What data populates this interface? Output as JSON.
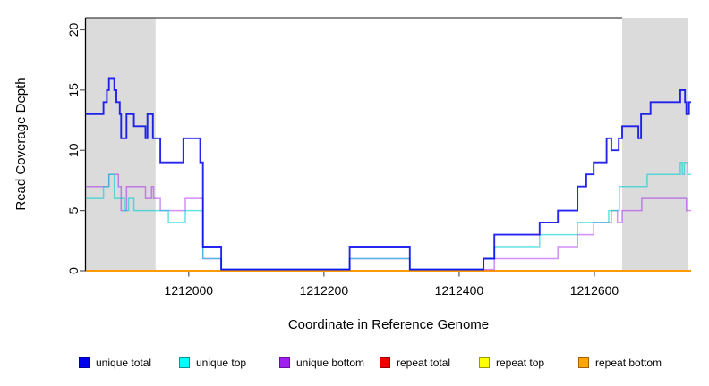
{
  "chart_data": {
    "type": "line",
    "subtype": "step-after",
    "title": "",
    "xlabel": "Coordinate in Reference Genome",
    "ylabel": "Read Coverage Depth",
    "xlim": [
      1211848,
      1212743
    ],
    "ylim": [
      0,
      21
    ],
    "x_ticks": [
      1212000,
      1212200,
      1212400,
      1212600
    ],
    "y_ticks": [
      0,
      5,
      10,
      15,
      20
    ],
    "grid": false,
    "legend_position": "bottom",
    "background": "#ffffff",
    "shaded_region_color": "#DBDBDB",
    "shaded_regions": [
      {
        "x1": 1211848,
        "x2": 1211951
      },
      {
        "x1": 1212641,
        "x2": 1212738
      }
    ],
    "series": [
      {
        "name": "repeat total",
        "color": "#DD0000",
        "alpha": 1,
        "width": 1.5,
        "legend_fill": "#EE0000",
        "legend_border": "#990000",
        "points": [
          [
            1211848,
            0
          ]
        ]
      },
      {
        "name": "repeat top",
        "color": "#FFFF00",
        "alpha": 1,
        "width": 1.5,
        "legend_fill": "#FFFF00",
        "legend_border": "#9A9A00",
        "points": [
          [
            1211848,
            0
          ]
        ]
      },
      {
        "name": "repeat bottom",
        "color": "#FF9800",
        "alpha": 1,
        "width": 1.8,
        "legend_fill": "#FFA500",
        "legend_border": "#A65E00",
        "points": [
          [
            1211848,
            0
          ]
        ]
      },
      {
        "name": "unique bottom",
        "color": "#A020F0",
        "alpha": 0.5,
        "width": 1.5,
        "legend_fill": "#A020F0",
        "legend_border": "#6812A0",
        "points": [
          [
            1211848,
            7
          ],
          [
            1211882,
            8
          ],
          [
            1211896,
            7
          ],
          [
            1211900,
            5
          ],
          [
            1211908,
            7
          ],
          [
            1211936,
            6
          ],
          [
            1211945,
            7
          ],
          [
            1211948,
            6
          ],
          [
            1211958,
            5
          ],
          [
            1211995,
            6
          ],
          [
            1212021,
            1
          ],
          [
            1212048,
            0
          ],
          [
            1212238,
            1
          ],
          [
            1212327,
            0
          ],
          [
            1212452,
            1
          ],
          [
            1212546,
            2
          ],
          [
            1212575,
            3
          ],
          [
            1212599,
            4
          ],
          [
            1212625,
            5
          ],
          [
            1212634,
            4
          ],
          [
            1212641,
            5
          ],
          [
            1212670,
            6
          ],
          [
            1212736,
            5
          ]
        ]
      },
      {
        "name": "unique top",
        "color": "#00CED1",
        "alpha": 0.6,
        "width": 1.5,
        "legend_fill": "#00FFFF",
        "legend_border": "#009699",
        "points": [
          [
            1211848,
            6
          ],
          [
            1211874,
            7
          ],
          [
            1211882,
            8
          ],
          [
            1211890,
            6
          ],
          [
            1211905,
            5
          ],
          [
            1211911,
            6
          ],
          [
            1211919,
            5
          ],
          [
            1211970,
            4
          ],
          [
            1211995,
            5
          ],
          [
            1212021,
            1
          ],
          [
            1212048,
            0
          ],
          [
            1212238,
            1
          ],
          [
            1212327,
            0
          ],
          [
            1212436,
            1
          ],
          [
            1212452,
            2
          ],
          [
            1212519,
            3
          ],
          [
            1212575,
            4
          ],
          [
            1212621,
            5
          ],
          [
            1212637,
            7
          ],
          [
            1212678,
            8
          ],
          [
            1212727,
            9
          ],
          [
            1212730,
            8
          ],
          [
            1212733,
            9
          ],
          [
            1212738,
            8
          ]
        ]
      },
      {
        "name": "unique total",
        "color": "#0000EE",
        "alpha": 0.85,
        "width": 1.9,
        "legend_fill": "#0000EE",
        "legend_border": "#000099",
        "points": [
          [
            1211848,
            13
          ],
          [
            1211874,
            14
          ],
          [
            1211879,
            15
          ],
          [
            1211882,
            16
          ],
          [
            1211890,
            15
          ],
          [
            1211893,
            14
          ],
          [
            1211898,
            13
          ],
          [
            1211900,
            11
          ],
          [
            1211908,
            13
          ],
          [
            1211919,
            12
          ],
          [
            1211936,
            11
          ],
          [
            1211939,
            13
          ],
          [
            1211947,
            11
          ],
          [
            1211958,
            9
          ],
          [
            1211992,
            11
          ],
          [
            1212017,
            9
          ],
          [
            1212021,
            2
          ],
          [
            1212048,
            0
          ],
          [
            1212238,
            2
          ],
          [
            1212327,
            0
          ],
          [
            1212436,
            1
          ],
          [
            1212452,
            3
          ],
          [
            1212519,
            4
          ],
          [
            1212546,
            5
          ],
          [
            1212575,
            7
          ],
          [
            1212588,
            8
          ],
          [
            1212599,
            9
          ],
          [
            1212618,
            11
          ],
          [
            1212625,
            10
          ],
          [
            1212636,
            11
          ],
          [
            1212641,
            12
          ],
          [
            1212665,
            11
          ],
          [
            1212669,
            13
          ],
          [
            1212683,
            14
          ],
          [
            1212727,
            15
          ],
          [
            1212734,
            14
          ],
          [
            1212736,
            13
          ],
          [
            1212740,
            14
          ]
        ]
      }
    ],
    "legend_order": [
      "unique total",
      "unique top",
      "unique bottom",
      "repeat total",
      "repeat top",
      "repeat bottom"
    ]
  }
}
